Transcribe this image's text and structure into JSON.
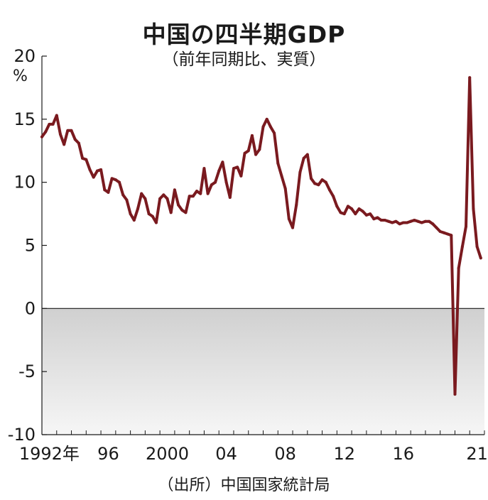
{
  "chart_data": {
    "type": "area",
    "title": "中国の四半期GDP",
    "subtitle": "（前年同期比、実質）",
    "source": "（出所）中国国家統計局",
    "ylabel": "%",
    "ylim": [
      -10,
      20
    ],
    "yticks": [
      "20",
      "15",
      "10",
      "5",
      "0",
      "-5",
      "-10"
    ],
    "xlim": [
      1992.0,
      2022.0
    ],
    "xticks": [
      {
        "value": 1992,
        "label": "1992年"
      },
      {
        "value": 1996,
        "label": "96"
      },
      {
        "value": 2000,
        "label": "2000"
      },
      {
        "value": 2004,
        "label": "04"
      },
      {
        "value": 2008,
        "label": "08"
      },
      {
        "value": 2012,
        "label": "12"
      },
      {
        "value": 2016,
        "label": "16"
      },
      {
        "value": 2021,
        "label": "21"
      }
    ],
    "negative_fill": "#d0d0d0",
    "line_color": "#7a1a1f",
    "series": [
      {
        "x": [
          1992.0,
          1992.25,
          1992.5,
          1992.75,
          1993.0,
          1993.25,
          1993.5,
          1993.75,
          1994.0,
          1994.25,
          1994.5,
          1994.75,
          1995.0,
          1995.25,
          1995.5,
          1995.75,
          1996.0,
          1996.25,
          1996.5,
          1996.75,
          1997.0,
          1997.25,
          1997.5,
          1997.75,
          1998.0,
          1998.25,
          1998.5,
          1998.75,
          1999.0,
          1999.25,
          1999.5,
          1999.75,
          2000.0,
          2000.25,
          2000.5,
          2000.75,
          2001.0,
          2001.25,
          2001.5,
          2001.75,
          2002.0,
          2002.25,
          2002.5,
          2002.75,
          2003.0,
          2003.25,
          2003.5,
          2003.75,
          2004.0,
          2004.25,
          2004.5,
          2004.75,
          2005.0,
          2005.25,
          2005.5,
          2005.75,
          2006.0,
          2006.25,
          2006.5,
          2006.75,
          2007.0,
          2007.25,
          2007.5,
          2007.75,
          2008.0,
          2008.25,
          2008.5,
          2008.75,
          2009.0,
          2009.25,
          2009.5,
          2009.75,
          2010.0,
          2010.25,
          2010.5,
          2010.75,
          2011.0,
          2011.25,
          2011.5,
          2011.75,
          2012.0,
          2012.25,
          2012.5,
          2012.75,
          2013.0,
          2013.25,
          2013.5,
          2013.75,
          2014.0,
          2014.25,
          2014.5,
          2014.75,
          2015.0,
          2015.25,
          2015.5,
          2015.75,
          2016.0,
          2016.25,
          2016.5,
          2016.75,
          2017.0,
          2017.25,
          2017.5,
          2017.75,
          2018.0,
          2018.25,
          2018.5,
          2018.75,
          2019.0,
          2019.25,
          2019.5,
          2019.75,
          2020.0,
          2020.25,
          2020.5,
          2020.75,
          2021.0,
          2021.25,
          2021.5,
          2021.75
        ],
        "y": [
          13.6,
          14.0,
          14.6,
          14.6,
          15.3,
          13.8,
          13.0,
          14.1,
          14.1,
          13.4,
          13.1,
          11.9,
          11.8,
          11.0,
          10.4,
          10.9,
          11.0,
          9.4,
          9.2,
          10.3,
          10.2,
          10.0,
          9.0,
          8.6,
          7.5,
          7.0,
          7.9,
          9.1,
          8.7,
          7.5,
          7.3,
          6.8,
          8.7,
          9.0,
          8.7,
          7.6,
          9.4,
          8.2,
          7.8,
          7.6,
          8.9,
          8.9,
          9.3,
          9.1,
          11.1,
          9.1,
          9.8,
          10.0,
          10.9,
          11.6,
          10.0,
          8.8,
          11.1,
          11.2,
          10.5,
          12.3,
          12.5,
          13.7,
          12.2,
          12.6,
          14.4,
          15.0,
          14.4,
          13.9,
          11.5,
          10.5,
          9.5,
          7.1,
          6.4,
          8.2,
          10.8,
          11.9,
          12.2,
          10.3,
          9.9,
          9.8,
          10.2,
          10.0,
          9.4,
          8.9,
          8.1,
          7.6,
          7.5,
          8.1,
          7.9,
          7.5,
          7.9,
          7.7,
          7.4,
          7.5,
          7.1,
          7.2,
          7.0,
          7.0,
          6.9,
          6.8,
          6.9,
          6.7,
          6.8,
          6.8,
          6.9,
          7.0,
          6.9,
          6.8,
          6.9,
          6.9,
          6.7,
          6.4,
          6.1,
          6.0,
          5.9,
          5.8,
          -6.8,
          3.2,
          4.9,
          6.5,
          18.3,
          7.9,
          4.9,
          4.0
        ]
      }
    ]
  }
}
